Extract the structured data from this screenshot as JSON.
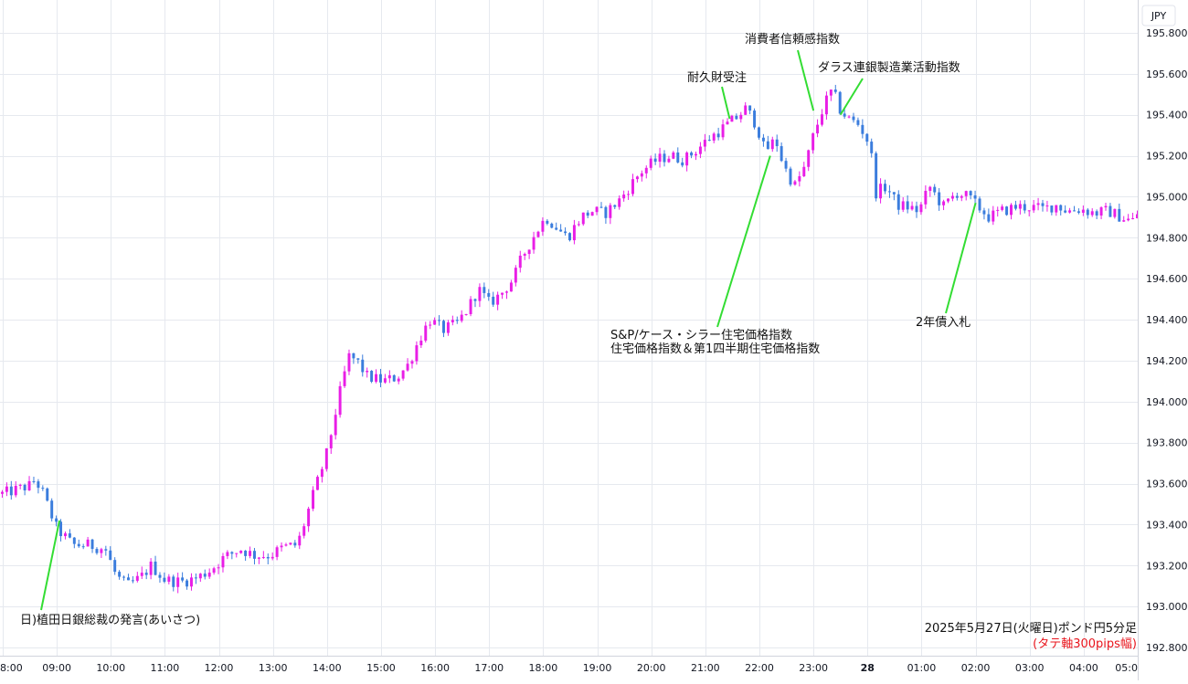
{
  "chart_data": {
    "type": "candlestick",
    "currency_label": "JPY",
    "y_ticks": [
      195.8,
      195.6,
      195.4,
      195.2,
      195.0,
      194.8,
      194.6,
      194.4,
      194.2,
      194.0,
      193.8,
      193.6,
      193.4,
      193.2,
      193.0,
      192.8
    ],
    "y_tick_labels": [
      "195.800",
      "195.600",
      "195.400",
      "195.200",
      "195.000",
      "194.800",
      "194.600",
      "194.400",
      "194.200",
      "194.000",
      "193.800",
      "193.600",
      "193.400",
      "193.200",
      "193.000",
      "192.800"
    ],
    "ylim": [
      192.76,
      195.96
    ],
    "x_ticks": [
      "8:00",
      "09:00",
      "10:00",
      "11:00",
      "12:00",
      "13:00",
      "14:00",
      "15:00",
      "16:00",
      "17:00",
      "18:00",
      "19:00",
      "20:00",
      "21:00",
      "22:00",
      "23:00",
      "28",
      "01:00",
      "02:00",
      "03:00",
      "04:00",
      "05:0"
    ],
    "x_tick_hours": [
      8,
      9,
      10,
      11,
      12,
      13,
      14,
      15,
      16,
      17,
      18,
      19,
      20,
      21,
      22,
      23,
      24,
      25,
      26,
      27,
      28,
      29
    ],
    "bold_tick": "28",
    "x_range_hours": [
      7.95,
      29.0
    ],
    "colors": {
      "up": "#e91ee6",
      "down": "#3b7ddd",
      "annotation_line": "#33dd33",
      "grid": "#e6e9ef"
    },
    "close_path": [
      [
        8.0,
        193.55
      ],
      [
        8.5,
        193.59
      ],
      [
        8.6,
        193.62
      ],
      [
        8.75,
        193.55
      ],
      [
        8.85,
        193.48
      ],
      [
        9.0,
        193.38
      ],
      [
        9.3,
        193.3
      ],
      [
        9.6,
        193.3
      ],
      [
        9.9,
        193.28
      ],
      [
        10.1,
        193.15
      ],
      [
        10.3,
        193.1
      ],
      [
        10.55,
        193.14
      ],
      [
        10.75,
        193.2
      ],
      [
        11.0,
        193.13
      ],
      [
        11.3,
        193.12
      ],
      [
        11.6,
        193.14
      ],
      [
        11.85,
        193.18
      ],
      [
        12.1,
        193.24
      ],
      [
        12.4,
        193.28
      ],
      [
        12.65,
        193.25
      ],
      [
        12.95,
        193.25
      ],
      [
        13.2,
        193.29
      ],
      [
        13.45,
        193.3
      ],
      [
        13.55,
        193.38
      ],
      [
        13.75,
        193.55
      ],
      [
        14.0,
        193.75
      ],
      [
        14.2,
        194.0
      ],
      [
        14.4,
        194.22
      ],
      [
        14.55,
        194.2
      ],
      [
        14.75,
        194.12
      ],
      [
        15.05,
        194.1
      ],
      [
        15.3,
        194.12
      ],
      [
        15.5,
        194.18
      ],
      [
        15.7,
        194.3
      ],
      [
        15.9,
        194.4
      ],
      [
        16.15,
        194.35
      ],
      [
        16.4,
        194.38
      ],
      [
        16.6,
        194.45
      ],
      [
        16.8,
        194.55
      ],
      [
        17.0,
        194.48
      ],
      [
        17.2,
        194.52
      ],
      [
        17.45,
        194.6
      ],
      [
        17.6,
        194.7
      ],
      [
        17.85,
        194.82
      ],
      [
        18.05,
        194.9
      ],
      [
        18.25,
        194.85
      ],
      [
        18.45,
        194.8
      ],
      [
        18.7,
        194.9
      ],
      [
        18.9,
        194.93
      ],
      [
        19.15,
        194.92
      ],
      [
        19.4,
        194.98
      ],
      [
        19.6,
        195.05
      ],
      [
        19.8,
        195.12
      ],
      [
        20.1,
        195.18
      ],
      [
        20.35,
        195.2
      ],
      [
        20.6,
        195.18
      ],
      [
        20.8,
        195.22
      ],
      [
        21.05,
        195.28
      ],
      [
        21.3,
        195.33
      ],
      [
        21.55,
        195.38
      ],
      [
        21.75,
        195.43
      ],
      [
        21.95,
        195.35
      ],
      [
        22.1,
        195.22
      ],
      [
        22.3,
        195.28
      ],
      [
        22.45,
        195.15
      ],
      [
        22.65,
        195.05
      ],
      [
        22.85,
        195.15
      ],
      [
        23.0,
        195.3
      ],
      [
        23.2,
        195.45
      ],
      [
        23.35,
        195.52
      ],
      [
        23.5,
        195.42
      ],
      [
        23.65,
        195.38
      ],
      [
        23.85,
        195.35
      ],
      [
        24.05,
        195.25
      ],
      [
        24.15,
        195.02
      ],
      [
        24.35,
        195.05
      ],
      [
        24.55,
        194.96
      ],
      [
        24.75,
        194.95
      ],
      [
        24.95,
        194.93
      ],
      [
        25.15,
        195.05
      ],
      [
        25.4,
        194.95
      ],
      [
        25.65,
        195.02
      ],
      [
        25.85,
        195.0
      ],
      [
        26.05,
        194.95
      ],
      [
        26.25,
        194.9
      ],
      [
        26.5,
        194.93
      ],
      [
        26.75,
        194.95
      ],
      [
        27.0,
        194.95
      ],
      [
        27.25,
        194.94
      ],
      [
        27.5,
        194.96
      ],
      [
        27.7,
        194.93
      ],
      [
        27.95,
        194.94
      ],
      [
        28.2,
        194.92
      ],
      [
        28.45,
        194.93
      ],
      [
        28.7,
        194.9
      ],
      [
        28.9,
        194.88
      ],
      [
        29.0,
        194.92
      ]
    ],
    "annotations": [
      {
        "label": "日)植田日銀総裁の発言(あいさつ)",
        "at_hour": 9.05,
        "price": 193.42
      },
      {
        "label": "耐久財受注",
        "at_hour": 21.45,
        "price": 195.38
      },
      {
        "label": "消費者信頼感指数",
        "at_hour": 23.0,
        "price": 195.42
      },
      {
        "label": "ダラス連銀製造業活動指数",
        "at_hour": 23.5,
        "price": 195.4
      },
      {
        "label": "S&P/ケース・シラー住宅価格指数",
        "at_hour": 22.2,
        "price": 195.2
      },
      {
        "label": "住宅価格指数＆第1四半期住宅価格指数",
        "at_hour": 22.2,
        "price": 195.2
      },
      {
        "label": "2年債入札",
        "at_hour": 26.0,
        "price": 194.97
      }
    ]
  },
  "footer": {
    "title": "2025年5月27日(火曜日)ポンド円5分足",
    "note": "(タテ軸300pips幅)"
  }
}
